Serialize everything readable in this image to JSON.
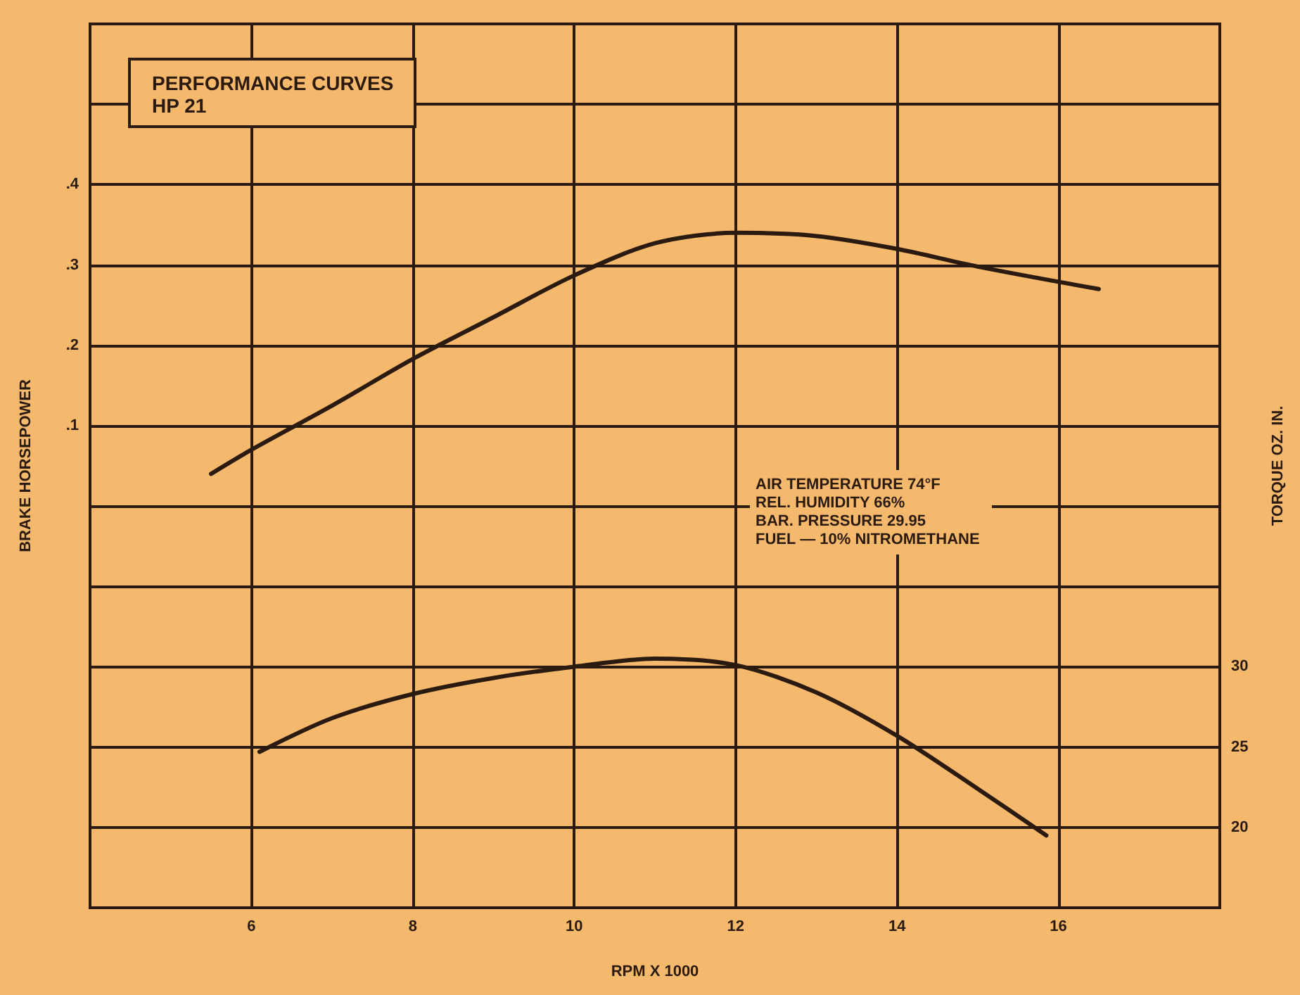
{
  "chart_data": {
    "type": "line",
    "title": "PERFORMANCE CURVES",
    "subtitle": "HP 21",
    "xlabel": "RPM X 1000",
    "ylabel": "BRAKE HORSEPOWER",
    "y2label": "TORQUE OZ. IN.",
    "annotations": [
      "AIR TEMPERATURE 74°F\nREL. HUMIDITY 66%\nBAR. PRESSURE 29.95\nFUEL — 10% NITROMETHANE"
    ],
    "xlim": [
      4,
      18
    ],
    "xticks": [
      6,
      8,
      10,
      12,
      14,
      16
    ],
    "ylim": [
      -0.5,
      0.6
    ],
    "yticks": [
      {
        "value": -0.5,
        "label": null
      },
      {
        "value": -0.4,
        "label": null
      },
      {
        "value": -0.3,
        "label": null
      },
      {
        "value": -0.2,
        "label": null
      },
      {
        "value": -0.1,
        "label": null
      },
      {
        "value": 0,
        "label": null
      },
      {
        "value": 0.1,
        "label": ".1"
      },
      {
        "value": 0.2,
        "label": ".2"
      },
      {
        "value": 0.3,
        "label": ".3"
      },
      {
        "value": 0.4,
        "label": ".4"
      },
      {
        "value": 0.5,
        "label": null
      },
      {
        "value": 0.6,
        "label": null
      }
    ],
    "y2lim": [
      15,
      70
    ],
    "y2ticks": [
      20,
      25,
      30
    ],
    "grid": true,
    "marker": "none",
    "line_style": "solid",
    "series": [
      {
        "color": "#2a1a10",
        "x": [
          5.5,
          6,
          7,
          8,
          9,
          10,
          11,
          12,
          13,
          14,
          15,
          16.5
        ],
        "values": [
          0.04,
          0.07,
          0.125,
          0.183,
          0.235,
          0.287,
          0.327,
          0.34,
          0.336,
          0.32,
          0.298,
          0.27
        ]
      },
      {
        "color": "#2a1a10",
        "axis": "y2",
        "x": [
          6.1,
          7,
          8,
          9,
          10,
          11,
          12,
          13,
          14,
          15,
          15.85
        ],
        "values": [
          24.7,
          26.8,
          28.3,
          29.3,
          30,
          30.5,
          30.1,
          28.4,
          25.7,
          22.4,
          19.5
        ]
      }
    ]
  }
}
